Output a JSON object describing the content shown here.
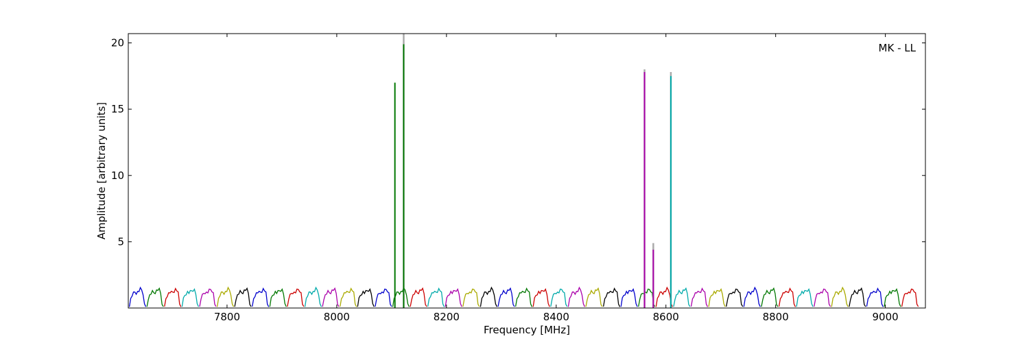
{
  "chart_data": {
    "type": "line",
    "title": "",
    "xlabel": "Frequency [MHz]",
    "ylabel": "Amplitude [arbitrary units]",
    "annotation": "MK - LL",
    "annotation_position": "top-right",
    "xlim": [
      7620,
      9073
    ],
    "ylim": [
      0,
      20.7
    ],
    "xticks": [
      7800,
      8000,
      8200,
      8400,
      8600,
      8800,
      9000
    ],
    "yticks": [
      5,
      10,
      15,
      20
    ],
    "grid": false,
    "legend": "none",
    "channel_start": 7622,
    "channel_width": 32,
    "channel_count": 45,
    "colors": [
      "#0000cc",
      "#007700",
      "#cc0000",
      "#00aaaa",
      "#aa00aa",
      "#aaaa00",
      "#000000"
    ],
    "spikes": [
      {
        "x": 8106,
        "y": 17.0,
        "color": "#007700"
      },
      {
        "x": 8122,
        "y": 19.9,
        "color": "#007700"
      },
      {
        "x": 8561,
        "y": 17.8,
        "color": "#aa00aa"
      },
      {
        "x": 8577,
        "y": 4.4,
        "color": "#aa00aa"
      },
      {
        "x": 8609,
        "y": 17.5,
        "color": "#00aaaa"
      }
    ],
    "reference_spikes": [
      {
        "x": 8122,
        "y": 20.7
      },
      {
        "x": 8561,
        "y": 18.0
      },
      {
        "x": 8577,
        "y": 4.9
      },
      {
        "x": 8609,
        "y": 17.8
      }
    ],
    "baseline_profile": [
      0.1,
      0.7,
      0.95,
      1.1,
      1.2,
      1.15,
      1.2,
      1.3,
      1.4,
      1.35,
      1.1,
      0.3,
      0.1
    ]
  }
}
